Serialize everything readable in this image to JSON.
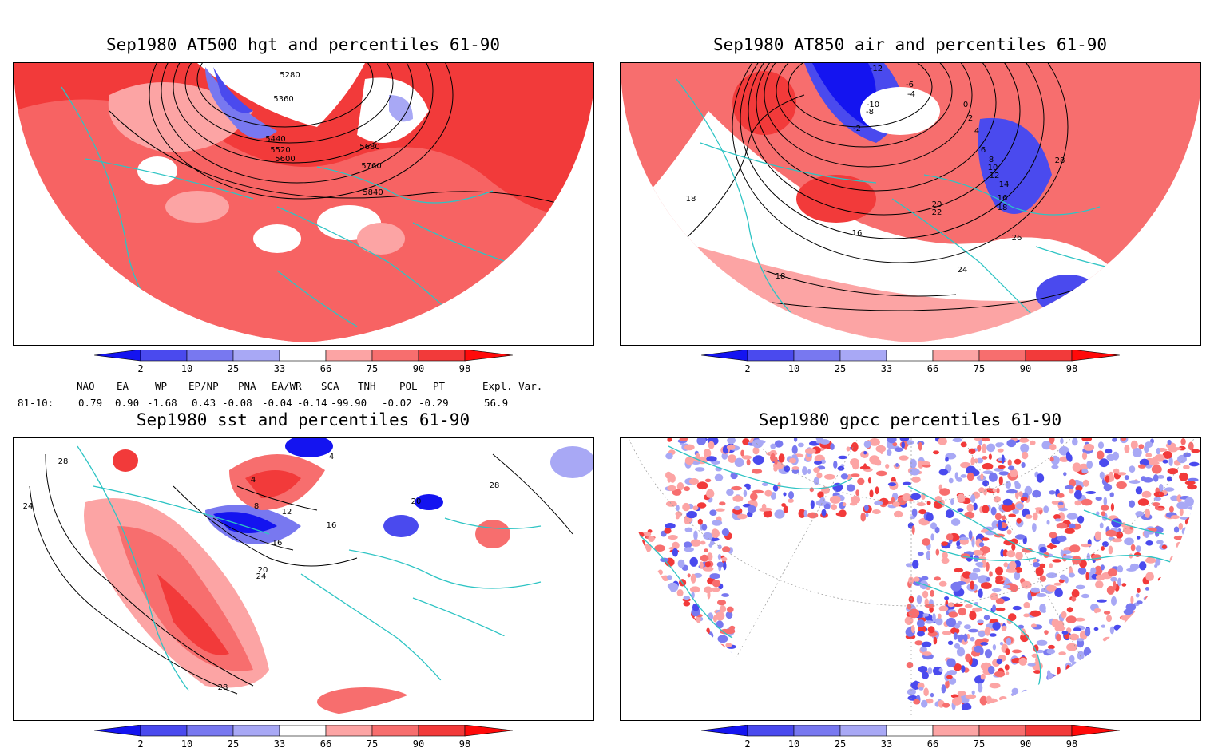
{
  "panels": [
    {
      "id": "hgt",
      "title": "Sep1980 AT500 hgt and percentiles 61-90",
      "contour_labels": [
        "5280",
        "5360",
        "5440",
        "5520",
        "5600",
        "5680",
        "5760",
        "5840"
      ]
    },
    {
      "id": "air",
      "title": "Sep1980 AT850 air and percentiles 61-90",
      "contour_labels": [
        "-12",
        "-10",
        "-8",
        "-6",
        "-4",
        "-2",
        "0",
        "2",
        "4",
        "6",
        "8",
        "10",
        "12",
        "14",
        "16",
        "18",
        "20",
        "22",
        "24",
        "26",
        "28",
        "16",
        "18",
        "18"
      ]
    },
    {
      "id": "sst",
      "title": "Sep1980 sst and percentiles 61-90",
      "contour_labels": [
        "28",
        "24",
        "28",
        "28",
        "4",
        "8",
        "12",
        "16",
        "20",
        "24",
        "20",
        "16",
        "4"
      ]
    },
    {
      "id": "gpcc",
      "title": "Sep1980 gpcc percentiles 61-90",
      "contour_labels": []
    }
  ],
  "colorbar": {
    "ticks": [
      "2",
      "10",
      "25",
      "33",
      "66",
      "75",
      "90",
      "98"
    ],
    "colors": {
      "blue_strong": "#1414f0",
      "blue_mid": "#4a4aee",
      "blue_light": "#7878f0",
      "blue_pale": "#a8a8f5",
      "red_pale": "#fca4a4",
      "red_light": "#f76e6e",
      "red_mid": "#f23a3a",
      "red_strong": "#ff0a0a"
    }
  },
  "indices": {
    "headers": [
      "NAO",
      "EA",
      "WP",
      "EP/NP",
      "PNA",
      "EA/WR",
      "SCA",
      "TNH",
      "POL",
      "PT",
      "Expl. Var."
    ],
    "row_label": "81-10:",
    "values": [
      "0.79",
      "0.90",
      "-1.68",
      "0.43",
      "-0.08",
      "-0.04",
      "-0.14",
      "-99.90",
      "-0.02",
      "-0.29",
      "56.9"
    ]
  },
  "style": {
    "coast_color": "#2ec4c4",
    "contour_color": "#000000"
  }
}
